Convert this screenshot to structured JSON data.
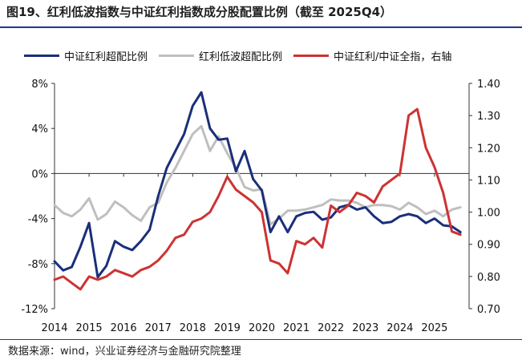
{
  "title": "图19、红利低波指数与中证红利指数成分股配置比例（截至 2025Q4）",
  "source": "数据来源：wind，兴业证券经济与金融研究院整理",
  "chart_data": {
    "type": "line",
    "series": [
      {
        "name": "中证红利超配比例",
        "color": "#1a2f7a",
        "axis": "left",
        "x": [
          2014.0,
          2014.25,
          2014.5,
          2014.75,
          2015.0,
          2015.25,
          2015.5,
          2015.75,
          2016.0,
          2016.25,
          2016.5,
          2016.75,
          2017.0,
          2017.25,
          2017.5,
          2017.75,
          2018.0,
          2018.25,
          2018.5,
          2018.75,
          2019.0,
          2019.25,
          2019.5,
          2019.75,
          2020.0,
          2020.25,
          2020.5,
          2020.75,
          2021.0,
          2021.25,
          2021.5,
          2021.75,
          2022.0,
          2022.25,
          2022.5,
          2022.75,
          2023.0,
          2023.25,
          2023.5,
          2023.75,
          2024.0,
          2024.25,
          2024.5,
          2024.75,
          2025.0,
          2025.25,
          2025.5,
          2025.75
        ],
        "values": [
          -7.8,
          -8.6,
          -8.3,
          -6.5,
          -4.4,
          -9.2,
          -8.2,
          -6.0,
          -6.5,
          -6.8,
          -6.0,
          -5.0,
          -2.0,
          0.5,
          2.0,
          3.5,
          6.0,
          7.2,
          4.0,
          3.0,
          3.1,
          0.2,
          2.0,
          -0.5,
          -1.5,
          -5.2,
          -3.8,
          -5.2,
          -3.8,
          -3.5,
          -3.4,
          -4.1,
          -3.9,
          -3.0,
          -2.8,
          -3.2,
          -3.0,
          -3.8,
          -4.4,
          -4.3,
          -3.8,
          -3.6,
          -3.8,
          -4.4,
          -4.0,
          -4.6,
          -4.7,
          -5.2
        ]
      },
      {
        "name": "红利低波超配比例",
        "color": "#bfbfbf",
        "axis": "left",
        "x": [
          2014.0,
          2014.25,
          2014.5,
          2014.75,
          2015.0,
          2015.25,
          2015.5,
          2015.75,
          2016.0,
          2016.25,
          2016.5,
          2016.75,
          2017.0,
          2017.25,
          2017.5,
          2017.75,
          2018.0,
          2018.25,
          2018.5,
          2018.75,
          2019.0,
          2019.25,
          2019.5,
          2019.75,
          2020.0,
          2020.25,
          2020.5,
          2020.75,
          2021.0,
          2021.25,
          2021.5,
          2021.75,
          2022.0,
          2022.25,
          2022.5,
          2022.75,
          2023.0,
          2023.25,
          2023.5,
          2023.75,
          2024.0,
          2024.25,
          2024.5,
          2024.75,
          2025.0,
          2025.25,
          2025.5,
          2025.75
        ],
        "values": [
          -2.8,
          -3.5,
          -3.8,
          -3.2,
          -2.2,
          -4.1,
          -3.6,
          -2.5,
          -3.0,
          -3.7,
          -4.2,
          -3.0,
          -2.6,
          -0.8,
          0.5,
          2.0,
          3.5,
          4.2,
          2.0,
          3.3,
          1.8,
          0.5,
          -1.2,
          -1.5,
          -1.4,
          -4.5,
          -4.0,
          -3.3,
          -3.3,
          -3.2,
          -3.0,
          -2.8,
          -2.3,
          -2.4,
          -2.4,
          -2.6,
          -3.0,
          -2.8,
          -2.8,
          -2.9,
          -3.2,
          -2.6,
          -3.0,
          -3.6,
          -3.3,
          -3.8,
          -3.2,
          -3.0
        ]
      },
      {
        "name": "中证红利/中证全指，右轴",
        "color": "#cc3333",
        "axis": "right",
        "x": [
          2014.0,
          2014.25,
          2014.5,
          2014.75,
          2015.0,
          2015.25,
          2015.5,
          2015.75,
          2016.0,
          2016.25,
          2016.5,
          2016.75,
          2017.0,
          2017.25,
          2017.5,
          2017.75,
          2018.0,
          2018.25,
          2018.5,
          2018.75,
          2019.0,
          2019.25,
          2019.5,
          2019.75,
          2020.0,
          2020.25,
          2020.5,
          2020.75,
          2021.0,
          2021.25,
          2021.5,
          2021.75,
          2022.0,
          2022.25,
          2022.5,
          2022.75,
          2023.0,
          2023.25,
          2023.5,
          2023.75,
          2024.0,
          2024.25,
          2024.5,
          2024.75,
          2025.0,
          2025.25,
          2025.5,
          2025.75
        ],
        "values": [
          0.79,
          0.8,
          0.78,
          0.76,
          0.8,
          0.79,
          0.8,
          0.82,
          0.81,
          0.8,
          0.82,
          0.83,
          0.85,
          0.88,
          0.92,
          0.93,
          0.97,
          0.98,
          1.0,
          1.05,
          1.11,
          1.07,
          1.05,
          1.03,
          1.0,
          0.85,
          0.84,
          0.81,
          0.91,
          0.9,
          0.92,
          0.89,
          1.02,
          1.0,
          1.02,
          1.06,
          1.05,
          1.03,
          1.08,
          1.1,
          1.12,
          1.3,
          1.32,
          1.2,
          1.14,
          1.06,
          0.94,
          0.93
        ]
      }
    ],
    "x_ticks": [
      "2014",
      "2015",
      "2016",
      "2017",
      "2018",
      "2019",
      "2020",
      "2021",
      "2022",
      "2023",
      "2024",
      "2025"
    ],
    "y_left": {
      "ticks": [
        8,
        4,
        0,
        -4,
        -8,
        -12
      ],
      "tick_labels": [
        "8%",
        "4%",
        "0%",
        "-4%",
        "-8%",
        "-12%"
      ],
      "ylim": [
        -12,
        8
      ]
    },
    "y_right": {
      "ticks": [
        1.4,
        1.3,
        1.2,
        1.1,
        1.0,
        0.9,
        0.8,
        0.7
      ],
      "tick_labels": [
        "1.40",
        "1.30",
        "1.20",
        "1.10",
        "1.00",
        "0.90",
        "0.80",
        "0.70"
      ],
      "ylim": [
        0.7,
        1.4
      ]
    },
    "xlim": [
      2014,
      2026
    ],
    "grid": false,
    "legend": "top"
  }
}
